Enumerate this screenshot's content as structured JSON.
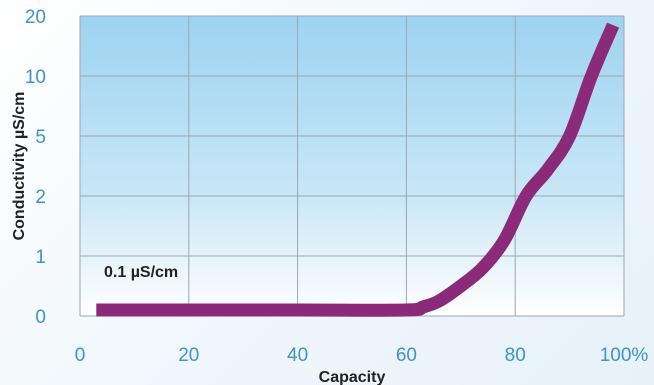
{
  "chart_data": {
    "type": "line",
    "title": "",
    "xlabel": "Capacity",
    "ylabel": "Conductivity µS/cm",
    "x_ticks": [
      "0",
      "20",
      "40",
      "60",
      "80",
      "100%"
    ],
    "x_tick_values": [
      0,
      20,
      40,
      60,
      80,
      100
    ],
    "y_ticks": [
      "0",
      "1",
      "2",
      "5",
      "10",
      "20"
    ],
    "y_scale": "categorical-steps",
    "xlim": [
      0,
      100
    ],
    "grid": true,
    "legend": "none",
    "annotation": "0.1 µS/cm",
    "series": [
      {
        "color": "#8a2a78",
        "points": [
          {
            "x": 3,
            "y": 0.1
          },
          {
            "x": 20,
            "y": 0.1
          },
          {
            "x": 40,
            "y": 0.1
          },
          {
            "x": 60,
            "y": 0.1
          },
          {
            "x": 63,
            "y": 0.15
          },
          {
            "x": 66,
            "y": 0.25
          },
          {
            "x": 70,
            "y": 0.5
          },
          {
            "x": 74,
            "y": 0.8
          },
          {
            "x": 78,
            "y": 1.2
          },
          {
            "x": 82,
            "y": 2
          },
          {
            "x": 86,
            "y": 3
          },
          {
            "x": 90,
            "y": 5
          },
          {
            "x": 94,
            "y": 10
          },
          {
            "x": 98,
            "y": 18
          }
        ]
      }
    ],
    "colors": {
      "plot_top": "#9dd3f1",
      "plot_bottom": "#ffffff",
      "grid": "#9aa7b1",
      "tick_text": "#3f93c9",
      "line": "#8a2a78"
    }
  }
}
